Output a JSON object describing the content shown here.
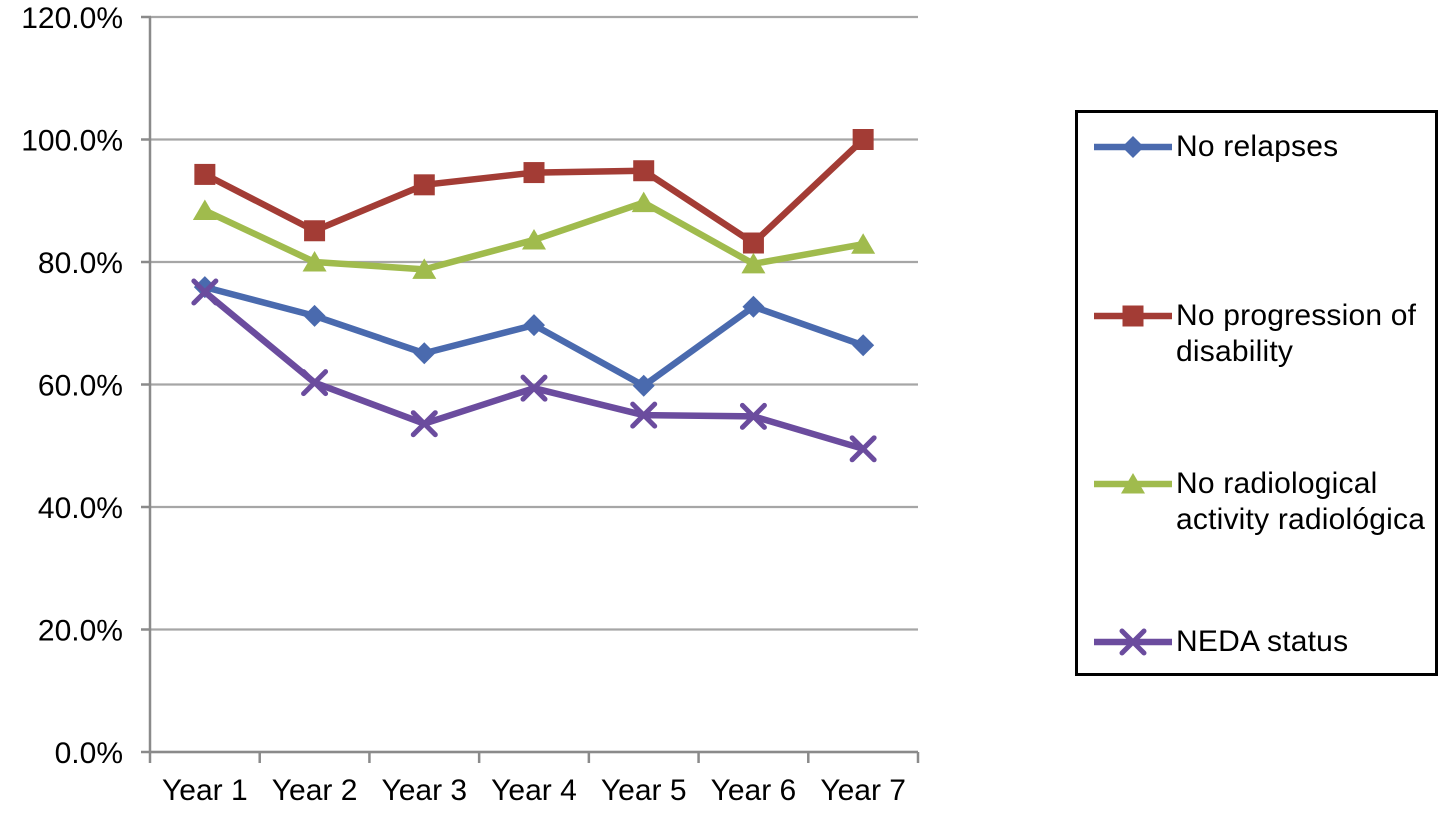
{
  "chart_data": {
    "type": "line",
    "title": "",
    "xlabel": "",
    "ylabel": "",
    "categories": [
      "Year 1",
      "Year 2",
      "Year 3",
      "Year 4",
      "Year 5",
      "Year 6",
      "Year 7"
    ],
    "series": [
      {
        "name": "No relapses",
        "marker": "diamond",
        "color": "#4A6AAE",
        "values": [
          75.9,
          71.2,
          65.1,
          69.7,
          59.8,
          72.7,
          66.4
        ]
      },
      {
        "name": "No progression of disability",
        "marker": "square",
        "color": "#A33C35",
        "values": [
          94.3,
          85.1,
          92.6,
          94.6,
          94.9,
          83.1,
          100.0
        ]
      },
      {
        "name": "No radiological activity radiológica",
        "marker": "triangle",
        "color": "#A0BB4D",
        "values": [
          88.4,
          80.0,
          78.8,
          83.6,
          89.7,
          79.7,
          82.9
        ]
      },
      {
        "name": "NEDA status",
        "marker": "x",
        "color": "#6B4C9E",
        "values": [
          75.1,
          60.3,
          53.6,
          59.4,
          55.0,
          54.8,
          49.5
        ]
      }
    ],
    "ylim": [
      0,
      120
    ],
    "yticks": [
      0,
      20,
      40,
      60,
      80,
      100,
      120
    ],
    "ytick_labels": [
      "0.0%",
      "20.0%",
      "40.0%",
      "60.0%",
      "80.0%",
      "100.0%",
      "120.0%"
    ],
    "grid": "horizontal",
    "legend_position": "right",
    "colors": {
      "background": "#FFFFFF",
      "gridline": "#A6A6A6",
      "axis": "#8A8A8A",
      "text": "#000000",
      "legend_border": "#000000"
    }
  }
}
